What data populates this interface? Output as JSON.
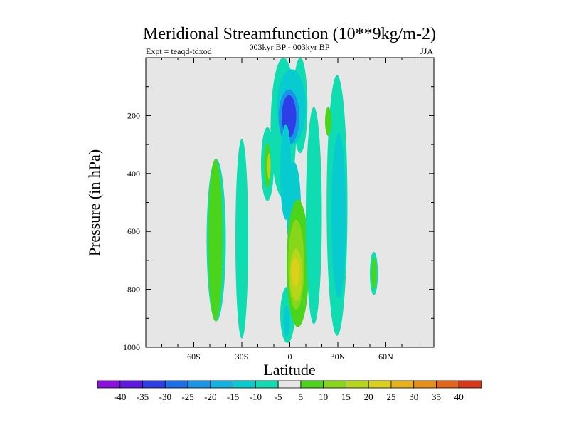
{
  "chart_data": {
    "type": "heatmap",
    "title": "Meridional Streamfunction (10**9kg/m-2)",
    "subtitle": "003kyr BP - 003kyr BP",
    "left_string": "Expt = teaqd-tdxod",
    "right_string": "JJA",
    "xlabel": "Latitude",
    "ylabel": "Pressure (in hPa)",
    "xlim": [
      -90,
      90
    ],
    "ylim": [
      1000,
      0
    ],
    "xticks": [
      -60,
      -30,
      0,
      30,
      60
    ],
    "xtick_labels": [
      "60S",
      "30S",
      "0",
      "30N",
      "60N"
    ],
    "yticks": [
      200,
      400,
      600,
      800,
      1000
    ],
    "ytick_labels": [
      "200",
      "400",
      "600",
      "800",
      "1000"
    ],
    "colorbar": {
      "levels": [
        -40,
        -35,
        -30,
        -25,
        -20,
        -15,
        -10,
        -5,
        5,
        10,
        15,
        20,
        25,
        30,
        35,
        40
      ],
      "labels": [
        "-40",
        "-35",
        "-30",
        "-25",
        "-20",
        "-15",
        "-10",
        "-5",
        "5",
        "10",
        "15",
        "20",
        "25",
        "30",
        "35",
        "40"
      ],
      "colors": [
        "#8a10e0",
        "#6018e0",
        "#2d3ee6",
        "#1b6fe8",
        "#1a94e6",
        "#11b3e3",
        "#08cbd0",
        "#0fdcb0",
        "#e6e6e6",
        "#4bd41c",
        "#88d61a",
        "#b7d61a",
        "#ddd01a",
        "#e6b21a",
        "#e6901a",
        "#e2661a",
        "#d93818"
      ],
      "background_color": "#e6e6e6"
    },
    "regions": [
      {
        "lat": [
          -12,
          4
        ],
        "p": [
          0,
          485
        ],
        "value": -7
      },
      {
        "lat": [
          2,
          11
        ],
        "p": [
          0,
          330
        ],
        "value": -7
      },
      {
        "lat": [
          -8,
          10
        ],
        "p": [
          40,
          300
        ],
        "value": -12
      },
      {
        "lat": [
          -7,
          6
        ],
        "p": [
          110,
          300
        ],
        "value": -25
      },
      {
        "lat": [
          -5,
          4
        ],
        "p": [
          130,
          275
        ],
        "value": -33
      },
      {
        "lat": [
          -6,
          1
        ],
        "p": [
          230,
          560
        ],
        "value": -12
      },
      {
        "lat": [
          -2,
          7
        ],
        "p": [
          360,
          700
        ],
        "value": -12
      },
      {
        "lat": [
          -6,
          3
        ],
        "p": [
          790,
          985
        ],
        "value": -7
      },
      {
        "lat": [
          -4,
          0
        ],
        "p": [
          855,
          965
        ],
        "value": -12
      },
      {
        "lat": [
          -18,
          -10
        ],
        "p": [
          240,
          495
        ],
        "value": -7
      },
      {
        "lat": [
          -16,
          -12
        ],
        "p": [
          295,
          450
        ],
        "value": 7
      },
      {
        "lat": [
          -14,
          -12
        ],
        "p": [
          330,
          420
        ],
        "value": 17
      },
      {
        "lat": [
          -2,
          12
        ],
        "p": [
          490,
          930
        ],
        "value": 7
      },
      {
        "lat": [
          -1,
          9
        ],
        "p": [
          560,
          870
        ],
        "value": 12
      },
      {
        "lat": [
          0,
          8
        ],
        "p": [
          660,
          840
        ],
        "value": 17
      },
      {
        "lat": [
          1,
          6
        ],
        "p": [
          690,
          790
        ],
        "value": 22
      },
      {
        "lat": [
          -34,
          -26
        ],
        "p": [
          280,
          970
        ],
        "value": -7
      },
      {
        "lat": [
          -52,
          -40
        ],
        "p": [
          350,
          910
        ],
        "value": -7
      },
      {
        "lat": [
          -51,
          -42
        ],
        "p": [
          350,
          910
        ],
        "value": 7
      },
      {
        "lat": [
          10,
          20
        ],
        "p": [
          170,
          920
        ],
        "value": -7
      },
      {
        "lat": [
          23,
          36
        ],
        "p": [
          60,
          960
        ],
        "value": -7
      },
      {
        "lat": [
          26,
          35
        ],
        "p": [
          260,
          830
        ],
        "value": -12
      },
      {
        "lat": [
          22,
          26
        ],
        "p": [
          170,
          270
        ],
        "value": 7
      },
      {
        "lat": [
          50,
          55
        ],
        "p": [
          670,
          820
        ],
        "value": -7
      },
      {
        "lat": [
          51,
          54
        ],
        "p": [
          690,
          800
        ],
        "value": 7
      }
    ]
  }
}
